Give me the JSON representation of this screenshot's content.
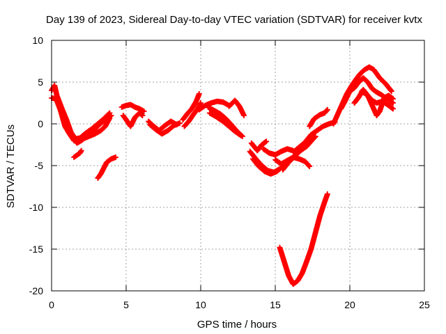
{
  "chart_data": {
    "type": "scatter",
    "title": "Day 139 of 2023, Sidereal Day-to-day VTEC variation (SDTVAR) for receiver kvtx",
    "xlabel": "GPS time / hours",
    "ylabel": "SDTVAR / TECUs",
    "xlim": [
      0,
      25
    ],
    "ylim": [
      -20,
      10
    ],
    "xticks": [
      0,
      5,
      10,
      15,
      20,
      25
    ],
    "yticks": [
      10,
      5,
      0,
      -5,
      -10,
      -15,
      -20
    ],
    "grid": true,
    "legend": "none",
    "marker": "+",
    "colors": {
      "points": "#ff0000",
      "grid": "#a0a0a0",
      "axes": "#000000"
    },
    "series": [
      {
        "segments": [
          [
            [
              0.0,
              4.0
            ],
            [
              0.2,
              4.6
            ],
            [
              0.5,
              2.3
            ],
            [
              0.8,
              1.2
            ],
            [
              1.1,
              -0.3
            ],
            [
              1.4,
              -1.5
            ],
            [
              1.7,
              -2.3
            ],
            [
              2.0,
              -2.0
            ],
            [
              2.4,
              -1.4
            ],
            [
              2.8,
              -0.8
            ],
            [
              3.2,
              -0.1
            ],
            [
              3.6,
              0.5
            ],
            [
              4.0,
              1.0
            ]
          ],
          [
            [
              0.0,
              3.1
            ],
            [
              0.3,
              3.0
            ],
            [
              0.6,
              1.6
            ],
            [
              0.9,
              -0.3
            ],
            [
              1.2,
              -1.2
            ],
            [
              1.5,
              -2.0
            ],
            [
              1.8,
              -2.1
            ],
            [
              2.1,
              -1.8
            ],
            [
              2.5,
              -1.5
            ],
            [
              2.9,
              -1.2
            ],
            [
              3.3,
              -0.8
            ],
            [
              3.6,
              -0.3
            ],
            [
              3.9,
              0.7
            ]
          ],
          [
            [
              0.4,
              3.2
            ],
            [
              0.7,
              1.8
            ],
            [
              1.0,
              0.5
            ],
            [
              1.3,
              -1.0
            ],
            [
              1.6,
              -1.8
            ],
            [
              1.9,
              -1.7
            ],
            [
              2.3,
              -1.1
            ],
            [
              2.7,
              -0.6
            ],
            [
              3.1,
              0.0
            ],
            [
              3.5,
              0.6
            ],
            [
              3.9,
              1.3
            ]
          ],
          [
            [
              1.5,
              -4.0
            ],
            [
              1.9,
              -3.5
            ],
            [
              2.0,
              -3.2
            ]
          ],
          [
            [
              3.1,
              -6.5
            ],
            [
              3.3,
              -6.0
            ],
            [
              3.5,
              -5.3
            ],
            [
              3.7,
              -4.6
            ],
            [
              4.0,
              -4.2
            ],
            [
              4.3,
              -4.0
            ]
          ],
          [
            [
              4.7,
              2.0
            ],
            [
              5.0,
              2.2
            ],
            [
              5.3,
              2.3
            ],
            [
              5.6,
              2.0
            ],
            [
              5.9,
              1.8
            ],
            [
              6.2,
              1.5
            ]
          ],
          [
            [
              4.8,
              1.0
            ],
            [
              5.0,
              0.5
            ],
            [
              5.3,
              -0.3
            ],
            [
              5.6,
              0.8
            ],
            [
              5.9,
              1.3
            ],
            [
              6.1,
              1.0
            ]
          ],
          [
            [
              6.5,
              0.3
            ],
            [
              6.8,
              -0.2
            ],
            [
              7.2,
              -0.8
            ],
            [
              7.6,
              -0.2
            ],
            [
              8.0,
              0.3
            ],
            [
              8.4,
              -0.1
            ]
          ],
          [
            [
              6.6,
              -0.1
            ],
            [
              7.0,
              -0.7
            ],
            [
              7.4,
              -1.2
            ],
            [
              7.8,
              -0.8
            ],
            [
              8.2,
              -0.2
            ],
            [
              8.6,
              0.1
            ]
          ],
          [
            [
              8.8,
              0.5
            ],
            [
              9.1,
              1.2
            ],
            [
              9.4,
              1.8
            ],
            [
              9.7,
              2.7
            ],
            [
              9.9,
              3.6
            ]
          ],
          [
            [
              8.9,
              -0.3
            ],
            [
              9.2,
              0.3
            ],
            [
              9.5,
              1.1
            ],
            [
              9.8,
              1.8
            ],
            [
              10.0,
              2.5
            ]
          ],
          [
            [
              9.9,
              1.7
            ],
            [
              10.3,
              2.2
            ],
            [
              10.7,
              2.5
            ],
            [
              11.1,
              2.7
            ],
            [
              11.5,
              2.6
            ],
            [
              11.9,
              2.2
            ]
          ],
          [
            [
              10.5,
              2.0
            ],
            [
              10.9,
              1.6
            ],
            [
              11.3,
              1.2
            ],
            [
              11.7,
              0.6
            ],
            [
              12.1,
              -0.2
            ],
            [
              12.5,
              -1.0
            ],
            [
              12.8,
              -1.5
            ]
          ],
          [
            [
              10.6,
              1.3
            ],
            [
              11.0,
              0.9
            ],
            [
              11.5,
              0.3
            ],
            [
              11.9,
              -0.3
            ],
            [
              12.3,
              -0.9
            ],
            [
              12.7,
              -1.4
            ]
          ],
          [
            [
              11.9,
              2.1
            ],
            [
              12.3,
              2.8
            ],
            [
              12.6,
              2.1
            ],
            [
              12.9,
              1.0
            ]
          ],
          [
            [
              13.4,
              -2.3
            ],
            [
              13.8,
              -3.2
            ],
            [
              14.1,
              -2.5
            ],
            [
              14.4,
              -2.1
            ]
          ],
          [
            [
              13.3,
              -3.3
            ],
            [
              13.7,
              -4.2
            ],
            [
              14.1,
              -5.0
            ],
            [
              14.5,
              -5.6
            ],
            [
              14.9,
              -5.8
            ],
            [
              15.3,
              -5.4
            ]
          ],
          [
            [
              13.5,
              -4.2
            ],
            [
              13.9,
              -5.1
            ],
            [
              14.3,
              -5.7
            ],
            [
              14.7,
              -6.0
            ],
            [
              15.1,
              -5.7
            ],
            [
              15.5,
              -5.1
            ]
          ],
          [
            [
              14.2,
              -3.0
            ],
            [
              14.6,
              -3.5
            ],
            [
              15.0,
              -3.7
            ],
            [
              15.4,
              -3.3
            ],
            [
              15.8,
              -3.0
            ],
            [
              16.2,
              -3.2
            ]
          ],
          [
            [
              15.0,
              -4.3
            ],
            [
              15.4,
              -4.8
            ],
            [
              15.8,
              -4.4
            ],
            [
              16.2,
              -4.0
            ],
            [
              16.6,
              -4.2
            ],
            [
              17.0,
              -4.5
            ],
            [
              17.3,
              -5.1
            ]
          ],
          [
            [
              15.5,
              -5.5
            ],
            [
              15.9,
              -4.6
            ],
            [
              16.3,
              -3.9
            ],
            [
              16.7,
              -3.2
            ],
            [
              17.1,
              -2.7
            ],
            [
              17.4,
              -2.1
            ],
            [
              17.7,
              -1.5
            ]
          ],
          [
            [
              16.2,
              -3.4
            ],
            [
              16.6,
              -2.8
            ],
            [
              17.0,
              -2.2
            ],
            [
              17.4,
              -1.3
            ],
            [
              17.8,
              -0.8
            ],
            [
              18.2,
              -0.3
            ],
            [
              18.6,
              0.0
            ],
            [
              19.0,
              0.2
            ]
          ],
          [
            [
              17.3,
              -0.3
            ],
            [
              17.6,
              0.6
            ],
            [
              18.0,
              1.1
            ],
            [
              18.3,
              1.3
            ],
            [
              18.5,
              1.7
            ]
          ],
          [
            [
              15.3,
              -14.8
            ],
            [
              15.6,
              -16.5
            ],
            [
              15.9,
              -18.2
            ],
            [
              16.2,
              -19.2
            ],
            [
              16.5,
              -18.8
            ],
            [
              16.8,
              -17.9
            ],
            [
              17.1,
              -16.5
            ],
            [
              17.4,
              -15.0
            ],
            [
              17.7,
              -13.0
            ],
            [
              18.0,
              -11.0
            ],
            [
              18.3,
              -9.4
            ],
            [
              18.5,
              -8.4
            ]
          ],
          [
            [
              18.9,
              0.0
            ],
            [
              19.2,
              1.2
            ],
            [
              19.5,
              2.4
            ],
            [
              19.8,
              3.6
            ],
            [
              20.1,
              4.5
            ],
            [
              20.4,
              5.3
            ],
            [
              20.7,
              6.0
            ],
            [
              21.0,
              6.5
            ],
            [
              21.3,
              6.8
            ],
            [
              21.6,
              6.5
            ],
            [
              22.0,
              5.5
            ],
            [
              22.4,
              4.8
            ],
            [
              22.8,
              3.9
            ]
          ],
          [
            [
              19.4,
              1.8
            ],
            [
              19.7,
              2.8
            ],
            [
              20.0,
              3.9
            ],
            [
              20.3,
              4.3
            ],
            [
              20.6,
              5.0
            ],
            [
              20.9,
              5.5
            ],
            [
              21.2,
              5.0
            ],
            [
              21.5,
              4.2
            ],
            [
              21.8,
              3.8
            ],
            [
              22.1,
              3.5
            ],
            [
              22.5,
              3.0
            ],
            [
              22.9,
              2.5
            ]
          ],
          [
            [
              20.3,
              2.5
            ],
            [
              20.6,
              3.2
            ],
            [
              20.9,
              4.1
            ],
            [
              21.2,
              3.4
            ],
            [
              21.5,
              2.8
            ],
            [
              21.8,
              2.5
            ],
            [
              22.2,
              2.7
            ],
            [
              22.6,
              2.2
            ],
            [
              22.9,
              1.8
            ]
          ],
          [
            [
              20.8,
              3.9
            ],
            [
              21.2,
              3.4
            ],
            [
              21.5,
              2.2
            ],
            [
              21.8,
              1.0
            ],
            [
              22.0,
              1.5
            ],
            [
              22.3,
              3.1
            ],
            [
              22.6,
              3.4
            ],
            [
              22.9,
              3.0
            ]
          ]
        ]
      }
    ]
  }
}
